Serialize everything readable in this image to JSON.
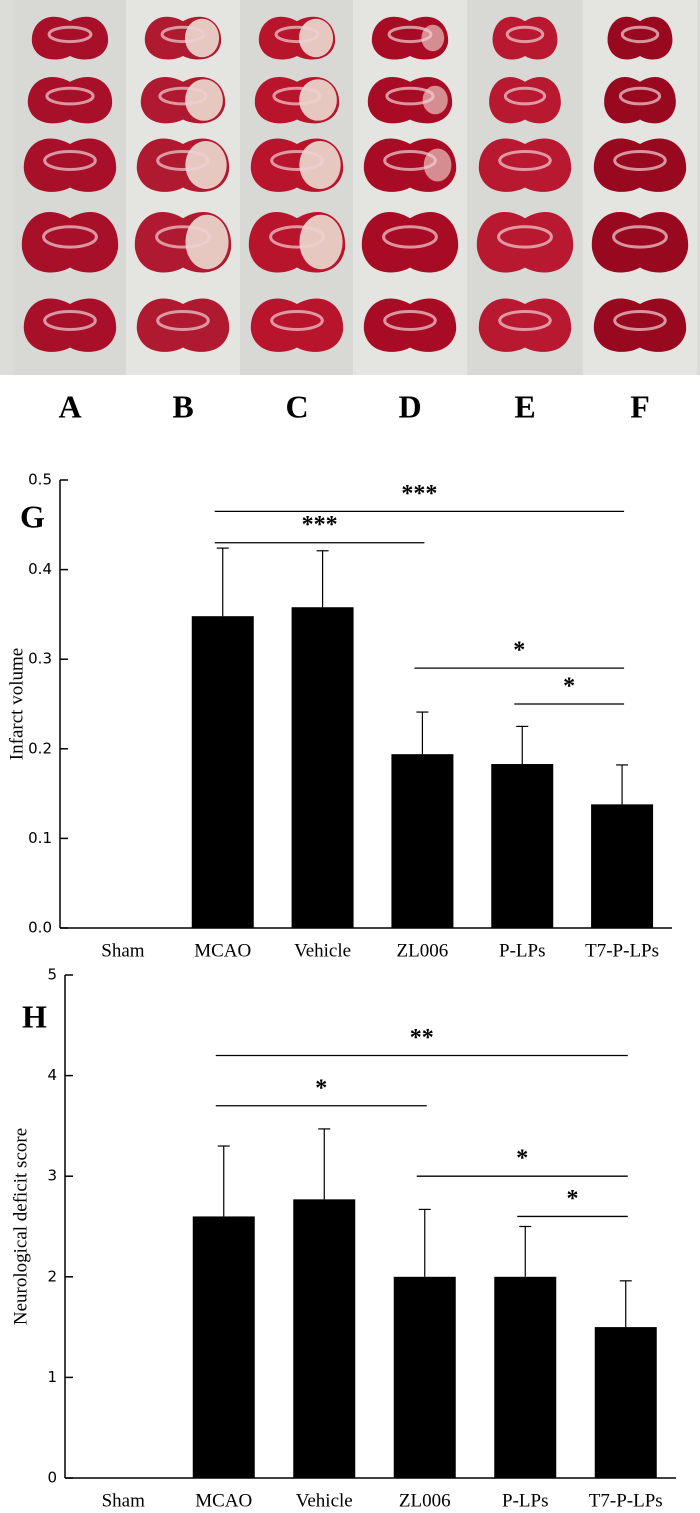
{
  "photo_panel": {
    "labels": [
      "A",
      "B",
      "C",
      "D",
      "E",
      "F"
    ]
  },
  "chart_data": [
    {
      "type": "bar",
      "panel_label": "G",
      "y_label": "Infarct volume",
      "categories": [
        "Sham",
        "MCAO",
        "Vehicle",
        "ZL006",
        "P-LPs",
        "T7-P-LPs"
      ],
      "values": [
        0,
        0.348,
        0.358,
        0.194,
        0.183,
        0.138
      ],
      "errors": [
        null,
        0.076,
        0.063,
        0.047,
        0.042,
        0.044
      ],
      "color": "#000000",
      "ylim": [
        0,
        0.5
      ],
      "yticks": [
        {
          "value": 0,
          "label": "0.0"
        },
        {
          "value": 0.1,
          "label": "0.1"
        },
        {
          "value": 0.2,
          "label": "0.2"
        },
        {
          "value": 0.3,
          "label": "0.3"
        },
        {
          "value": 0.4,
          "label": "0.4"
        },
        {
          "value": 0.5,
          "label": "0.5"
        }
      ],
      "significance": [
        {
          "from": 1,
          "to": 5,
          "y": 0.465,
          "label": "***"
        },
        {
          "from": 1,
          "to": 3,
          "y": 0.43,
          "label": "***"
        },
        {
          "from": 3,
          "to": 5,
          "y": 0.29,
          "label": "*"
        },
        {
          "from": 4,
          "to": 5,
          "y": 0.25,
          "label": "*"
        }
      ]
    },
    {
      "type": "bar",
      "panel_label": "H",
      "y_label": "Neurological deficit score",
      "categories": [
        "Sham",
        "MCAO",
        "Vehicle",
        "ZL006",
        "P-LPs",
        "T7-P-LPs"
      ],
      "values": [
        0,
        2.6,
        2.77,
        2.0,
        2.0,
        1.5
      ],
      "errors": [
        null,
        0.7,
        0.7,
        0.67,
        0.5,
        0.46
      ],
      "color": "#000000",
      "ylim": [
        0,
        5
      ],
      "yticks": [
        0,
        1,
        2,
        3,
        4,
        5
      ],
      "significance": [
        {
          "from": 1,
          "to": 5,
          "y": 4.2,
          "label": "**"
        },
        {
          "from": 1,
          "to": 3,
          "y": 3.7,
          "label": "*"
        },
        {
          "from": 3,
          "to": 5,
          "y": 3.0,
          "label": "*"
        },
        {
          "from": 4,
          "to": 5,
          "y": 2.6,
          "label": "*"
        }
      ]
    }
  ]
}
